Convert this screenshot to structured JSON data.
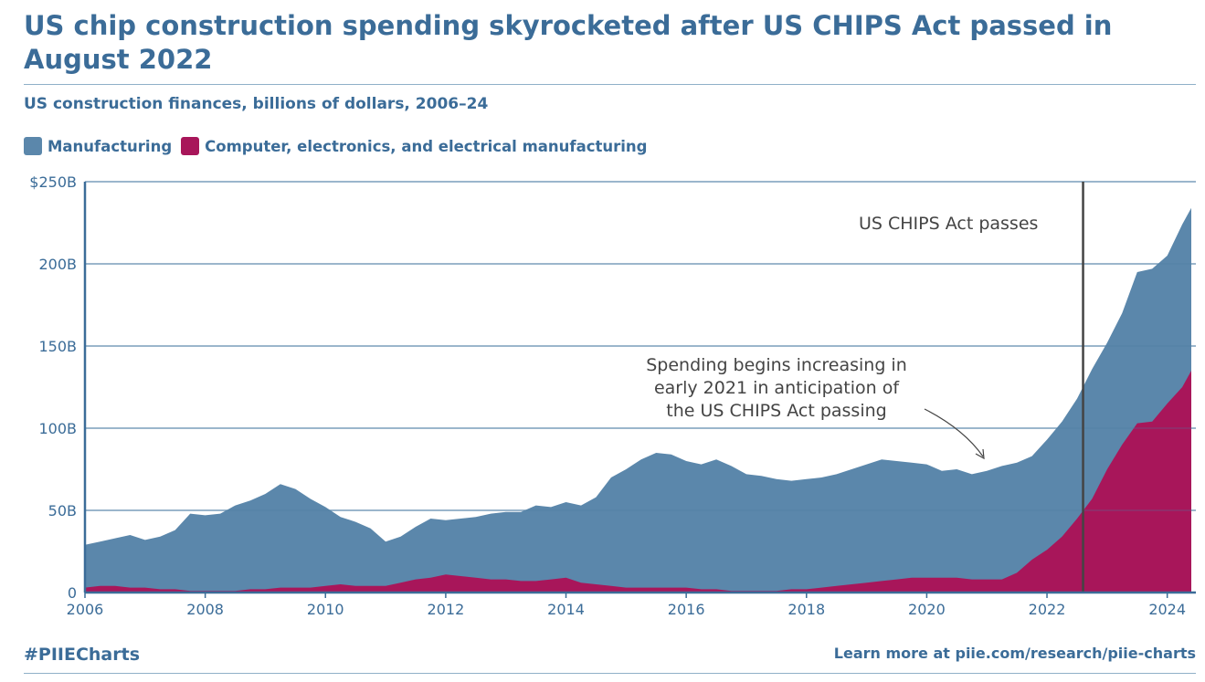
{
  "header": {
    "title": "US chip construction spending skyrocketed after US CHIPS Act passed in August 2022",
    "subtitle": "US construction finances, billions of dollars, 2006–24"
  },
  "footer": {
    "hashtag": "#PIIECharts",
    "link": "Learn more at piie.com/research/piie-charts"
  },
  "colors": {
    "manufacturing": "#5b87ab",
    "computer": "#a8165a",
    "title": "#3b6c98"
  },
  "chart_data": {
    "type": "area",
    "title": "US chip construction spending skyrocketed after US CHIPS Act passed in August 2022",
    "ylabel": "Billions of dollars",
    "ylim": [
      0,
      250
    ],
    "xlim": [
      2006,
      2024.4
    ],
    "grid": true,
    "legend_placement": "top-left",
    "y_ticks": [
      "0",
      "50B",
      "100B",
      "150B",
      "200B",
      "$250B"
    ],
    "y_tick_values": [
      0,
      50,
      100,
      150,
      200,
      250
    ],
    "x_ticks": [
      "2006",
      "2008",
      "2010",
      "2012",
      "2014",
      "2016",
      "2018",
      "2020",
      "2022",
      "2024"
    ],
    "x_tick_values": [
      2006,
      2008,
      2010,
      2012,
      2014,
      2016,
      2018,
      2020,
      2022,
      2024
    ],
    "x_start": 2006,
    "x_step": 0.25,
    "x_last": 2024.4,
    "series": [
      {
        "name": "Manufacturing",
        "color": "#5b87ab",
        "values": [
          29,
          31,
          33,
          35,
          32,
          34,
          38,
          48,
          47,
          48,
          53,
          56,
          60,
          66,
          63,
          57,
          52,
          46,
          43,
          39,
          31,
          34,
          40,
          45,
          44,
          45,
          46,
          48,
          49,
          49,
          53,
          52,
          55,
          53,
          58,
          70,
          75,
          81,
          85,
          84,
          80,
          78,
          81,
          77,
          72,
          71,
          69,
          68,
          69,
          70,
          72,
          75,
          78,
          81,
          80,
          79,
          78,
          74,
          75,
          72,
          74,
          77,
          79,
          83,
          93,
          104,
          118,
          136,
          152,
          170,
          195,
          197,
          205,
          224,
          234
        ]
      },
      {
        "name": "Computer, electronics, and electrical manufacturing",
        "color": "#a8165a",
        "values": [
          3,
          4,
          4,
          3,
          3,
          2,
          2,
          1,
          1,
          1,
          1,
          2,
          2,
          3,
          3,
          3,
          4,
          5,
          4,
          4,
          4,
          6,
          8,
          9,
          11,
          10,
          9,
          8,
          8,
          7,
          7,
          8,
          9,
          6,
          5,
          4,
          3,
          3,
          3,
          3,
          3,
          2,
          2,
          1,
          1,
          1,
          1,
          2,
          2,
          3,
          4,
          5,
          6,
          7,
          8,
          9,
          9,
          9,
          9,
          8,
          8,
          8,
          12,
          20,
          26,
          34,
          45,
          57,
          75,
          90,
          103,
          104,
          115,
          125,
          135
        ]
      }
    ],
    "annotations": [
      {
        "text": "US CHIPS Act passes",
        "x": 2022.6
      },
      {
        "text": "Spending begins increasing in early 2021 in anticipation of the US CHIPS Act passing",
        "lines": [
          "Spending begins increasing in",
          "early 2021 in anticipation of",
          "the US CHIPS Act passing"
        ],
        "x": 2021.0
      }
    ]
  }
}
